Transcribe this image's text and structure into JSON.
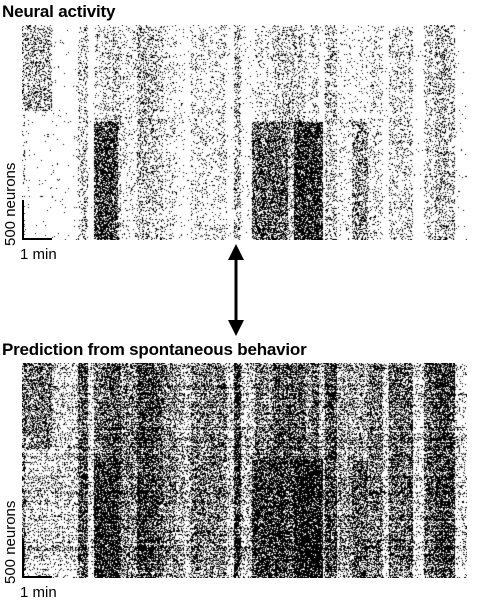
{
  "panels": [
    {
      "title": "Neural activity",
      "scale_y_label": "500 neurons",
      "scale_x_label": "1 min",
      "style": "sparse"
    },
    {
      "title": "Prediction from spontaneous behavior",
      "scale_y_label": "500 neurons",
      "scale_x_label": "1 min",
      "style": "dense"
    }
  ],
  "arrow": {
    "type": "double-headed",
    "color": "#000000"
  },
  "colors": {
    "ink": "#000000",
    "paper": "#ffffff"
  }
}
